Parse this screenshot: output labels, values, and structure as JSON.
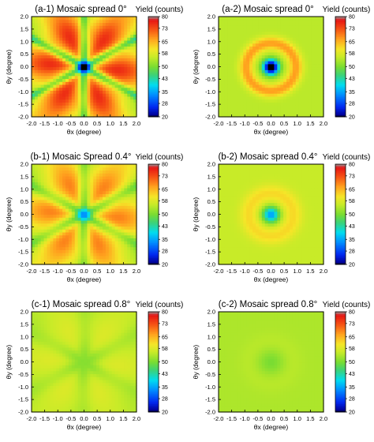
{
  "figure": {
    "colorbar_label": "Yield (counts)",
    "xlabel": "θx (degree)",
    "ylabel": "θy (degree)"
  },
  "chart_data": [
    {
      "type": "heatmap",
      "id": "a-1",
      "title": "(a-1) Mosaic spread 0°",
      "mosaic_spread_deg": 0,
      "xlabel": "θx (degree)",
      "ylabel": "θy (degree)",
      "xlim": [
        -2.0,
        2.0
      ],
      "ylim": [
        -2.0,
        2.0
      ],
      "x_ticks": [
        "-2.0",
        "-1.5",
        "-1.0",
        "-0.5",
        "0.0",
        "0.5",
        "1.0",
        "1.5",
        "2.0"
      ],
      "y_ticks": [
        "-2.0",
        "-1.5",
        "-1.0",
        "-0.5",
        "0.0",
        "0.5",
        "1.0",
        "1.5",
        "2.0"
      ],
      "colorbar": {
        "label": "Yield (counts)",
        "ticks": [
          "20",
          "28",
          "35",
          "43",
          "50",
          "58",
          "65",
          "73",
          "80"
        ],
        "range": [
          20,
          80
        ]
      },
      "field": {
        "base": 59,
        "dip_depth": 50,
        "dip_sigma": 0.17,
        "ring_amp": 11,
        "ring_r": 1.3,
        "ring_sigma": 0.6,
        "planar_amp": 13,
        "planar_width": 0.11,
        "harmonic_amp": 12
      }
    },
    {
      "type": "heatmap",
      "id": "a-2",
      "title": "(a-2) Mosaic spread 0°",
      "mosaic_spread_deg": 0,
      "xlabel": "θx (degree)",
      "ylabel": "θy (degree)",
      "xlim": [
        -2.0,
        2.0
      ],
      "ylim": [
        -2.0,
        2.0
      ],
      "x_ticks": [
        "-2.0",
        "-1.5",
        "-1.0",
        "-0.5",
        "0.0",
        "0.5",
        "1.0",
        "1.5",
        "2.0"
      ],
      "y_ticks": [
        "-2.0",
        "-1.5",
        "-1.0",
        "-0.5",
        "0.0",
        "0.5",
        "1.0",
        "1.5",
        "2.0"
      ],
      "colorbar": {
        "label": "Yield (counts)",
        "ticks": [
          "20",
          "28",
          "35",
          "43",
          "50",
          "58",
          "65",
          "73",
          "80"
        ],
        "range": [
          20,
          80
        ]
      },
      "field": {
        "base": 55,
        "dip_depth": 44,
        "dip_sigma": 0.2,
        "ring_amp": 12,
        "ring_r": 0.95,
        "ring_sigma": 0.18,
        "planar_amp": 0,
        "planar_width": 0.1,
        "harmonic_amp": 0
      }
    },
    {
      "type": "heatmap",
      "id": "b-1",
      "title": "(b-1) Mosaic Spread 0.4°",
      "mosaic_spread_deg": 0.4,
      "xlabel": "θx (degree)",
      "ylabel": "θy (degree)",
      "xlim": [
        -2.0,
        2.0
      ],
      "ylim": [
        -2.0,
        2.0
      ],
      "x_ticks": [
        "-2.0",
        "-1.5",
        "-1.0",
        "-0.5",
        "0.0",
        "0.5",
        "1.0",
        "1.5",
        "2.0"
      ],
      "y_ticks": [
        "-2.0",
        "-1.5",
        "-1.0",
        "-0.5",
        "0.0",
        "0.5",
        "1.0",
        "1.5",
        "2.0"
      ],
      "colorbar": {
        "label": "Yield (counts)",
        "ticks": [
          "20",
          "28",
          "35",
          "43",
          "50",
          "58",
          "65",
          "73",
          "80"
        ],
        "range": [
          20,
          80
        ]
      },
      "field": {
        "base": 57,
        "dip_depth": 25,
        "dip_sigma": 0.2,
        "ring_amp": 8,
        "ring_r": 1.3,
        "ring_sigma": 0.6,
        "planar_amp": 7,
        "planar_width": 0.15,
        "harmonic_amp": 8
      }
    },
    {
      "type": "heatmap",
      "id": "b-2",
      "title": "(b-2) Mosaic spread 0.4°",
      "mosaic_spread_deg": 0.4,
      "xlabel": "θx (degree)",
      "ylabel": "θy (degree)",
      "xlim": [
        -2.0,
        2.0
      ],
      "ylim": [
        -2.0,
        2.0
      ],
      "x_ticks": [
        "-2.0",
        "-1.5",
        "-1.0",
        "-0.5",
        "0.0",
        "0.5",
        "1.0",
        "1.5",
        "2.0"
      ],
      "y_ticks": [
        "-2.0",
        "-1.5",
        "-1.0",
        "-0.5",
        "0.0",
        "0.5",
        "1.0",
        "1.5",
        "2.0"
      ],
      "colorbar": {
        "label": "Yield (counts)",
        "ticks": [
          "20",
          "28",
          "35",
          "43",
          "50",
          "58",
          "65",
          "73",
          "80"
        ],
        "range": [
          20,
          80
        ]
      },
      "field": {
        "base": 56,
        "dip_depth": 22,
        "dip_sigma": 0.22,
        "ring_amp": 6,
        "ring_r": 0.85,
        "ring_sigma": 0.25,
        "planar_amp": 0,
        "planar_width": 0.1,
        "harmonic_amp": 0
      }
    },
    {
      "type": "heatmap",
      "id": "c-1",
      "title": "(c-1) Mosaic spread 0.8°",
      "mosaic_spread_deg": 0.8,
      "xlabel": "θx (degree)",
      "ylabel": "θy (degree)",
      "xlim": [
        -2.0,
        2.0
      ],
      "ylim": [
        -2.0,
        2.0
      ],
      "x_ticks": [
        "-2.0",
        "-1.5",
        "-1.0",
        "-0.5",
        "0.0",
        "0.5",
        "1.0",
        "1.5",
        "2.0"
      ],
      "y_ticks": [
        "-2.0",
        "-1.5",
        "-1.0",
        "-0.5",
        "0.0",
        "0.5",
        "1.0",
        "1.5",
        "2.0"
      ],
      "colorbar": {
        "label": "Yield (counts)",
        "ticks": [
          "20",
          "28",
          "35",
          "43",
          "50",
          "58",
          "65",
          "73",
          "80"
        ],
        "range": [
          20,
          80
        ]
      },
      "field": {
        "base": 55,
        "dip_depth": 4,
        "dip_sigma": 0.35,
        "ring_amp": 2,
        "ring_r": 1.3,
        "ring_sigma": 0.6,
        "planar_amp": 1.5,
        "planar_width": 0.2,
        "harmonic_amp": 2
      }
    },
    {
      "type": "heatmap",
      "id": "c-2",
      "title": "(c-2) Mosaic spread 0.8°",
      "mosaic_spread_deg": 0.8,
      "xlabel": "θx (degree)",
      "ylabel": "θy (degree)",
      "xlim": [
        -2.0,
        2.0
      ],
      "ylim": [
        -2.0,
        2.0
      ],
      "x_ticks": [
        "-2.0",
        "-1.5",
        "-1.0",
        "-0.5",
        "0.0",
        "0.5",
        "1.0",
        "1.5",
        "2.0"
      ],
      "y_ticks": [
        "-2.0",
        "-1.5",
        "-1.0",
        "-0.5",
        "0.0",
        "0.5",
        "1.0",
        "1.5",
        "2.0"
      ],
      "colorbar": {
        "label": "Yield (counts)",
        "ticks": [
          "20",
          "28",
          "35",
          "43",
          "50",
          "58",
          "65",
          "73",
          "80"
        ],
        "range": [
          20,
          80
        ]
      },
      "field": {
        "base": 54,
        "dip_depth": 4,
        "dip_sigma": 0.35,
        "ring_amp": 1,
        "ring_r": 0.8,
        "ring_sigma": 0.3,
        "planar_amp": 0,
        "planar_width": 0.1,
        "harmonic_amp": 0
      }
    }
  ]
}
